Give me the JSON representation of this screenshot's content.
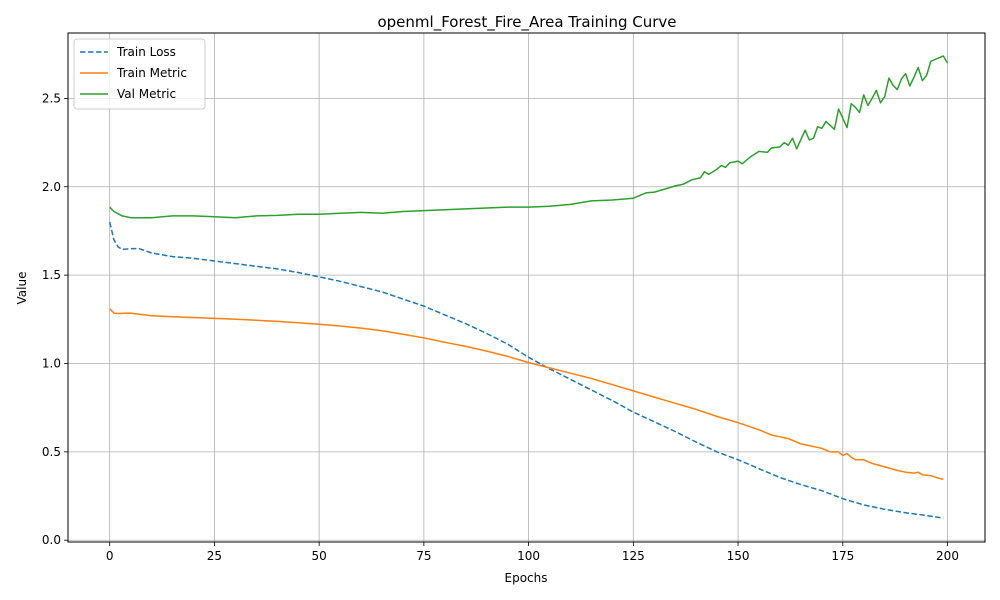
{
  "chart_data": {
    "type": "line",
    "title": "openml_Forest_Fire_Area Training Curve",
    "xlabel": "Epochs",
    "ylabel": "Value",
    "xlim": [
      -9.95,
      208.95
    ],
    "ylim": [
      -0.01,
      2.87
    ],
    "xticks": [
      0,
      25,
      50,
      75,
      100,
      125,
      150,
      175,
      200
    ],
    "yticks": [
      0.0,
      0.5,
      1.0,
      1.5,
      2.0,
      2.5
    ],
    "xtick_labels": [
      "0",
      "25",
      "50",
      "75",
      "100",
      "125",
      "150",
      "175",
      "200"
    ],
    "ytick_labels": [
      "0.0",
      "0.5",
      "1.0",
      "1.5",
      "2.0",
      "2.5"
    ],
    "grid": true,
    "legend_position": "upper-left",
    "series": [
      {
        "name": "Train Loss",
        "color": "#1f77b4",
        "style": "dashed",
        "points": [
          [
            0,
            1.8
          ],
          [
            1,
            1.7
          ],
          [
            2,
            1.66
          ],
          [
            3,
            1.645
          ],
          [
            5,
            1.65
          ],
          [
            7,
            1.65
          ],
          [
            10,
            1.625
          ],
          [
            15,
            1.605
          ],
          [
            20,
            1.595
          ],
          [
            25,
            1.58
          ],
          [
            30,
            1.565
          ],
          [
            35,
            1.55
          ],
          [
            40,
            1.535
          ],
          [
            45,
            1.515
          ],
          [
            50,
            1.49
          ],
          [
            55,
            1.465
          ],
          [
            60,
            1.435
          ],
          [
            65,
            1.405
          ],
          [
            70,
            1.365
          ],
          [
            75,
            1.325
          ],
          [
            80,
            1.275
          ],
          [
            85,
            1.225
          ],
          [
            90,
            1.17
          ],
          [
            95,
            1.11
          ],
          [
            100,
            1.035
          ],
          [
            105,
            0.97
          ],
          [
            110,
            0.91
          ],
          [
            115,
            0.85
          ],
          [
            120,
            0.79
          ],
          [
            125,
            0.725
          ],
          [
            130,
            0.67
          ],
          [
            135,
            0.615
          ],
          [
            140,
            0.555
          ],
          [
            145,
            0.5
          ],
          [
            150,
            0.455
          ],
          [
            155,
            0.405
          ],
          [
            160,
            0.355
          ],
          [
            165,
            0.315
          ],
          [
            170,
            0.28
          ],
          [
            175,
            0.235
          ],
          [
            180,
            0.2
          ],
          [
            185,
            0.175
          ],
          [
            190,
            0.155
          ],
          [
            195,
            0.14
          ],
          [
            199,
            0.125
          ]
        ]
      },
      {
        "name": "Train Metric",
        "color": "#ff7f0e",
        "style": "solid",
        "points": [
          [
            0,
            1.31
          ],
          [
            1,
            1.285
          ],
          [
            2,
            1.283
          ],
          [
            5,
            1.285
          ],
          [
            10,
            1.27
          ],
          [
            15,
            1.265
          ],
          [
            20,
            1.26
          ],
          [
            25,
            1.255
          ],
          [
            30,
            1.25
          ],
          [
            35,
            1.245
          ],
          [
            40,
            1.238
          ],
          [
            45,
            1.23
          ],
          [
            50,
            1.222
          ],
          [
            55,
            1.212
          ],
          [
            60,
            1.2
          ],
          [
            65,
            1.185
          ],
          [
            70,
            1.166
          ],
          [
            75,
            1.145
          ],
          [
            80,
            1.12
          ],
          [
            85,
            1.097
          ],
          [
            90,
            1.07
          ],
          [
            95,
            1.04
          ],
          [
            100,
            1.005
          ],
          [
            105,
            0.975
          ],
          [
            110,
            0.945
          ],
          [
            115,
            0.915
          ],
          [
            120,
            0.88
          ],
          [
            125,
            0.845
          ],
          [
            130,
            0.81
          ],
          [
            135,
            0.775
          ],
          [
            140,
            0.74
          ],
          [
            145,
            0.7
          ],
          [
            150,
            0.665
          ],
          [
            155,
            0.625
          ],
          [
            158,
            0.595
          ],
          [
            160,
            0.585
          ],
          [
            162,
            0.575
          ],
          [
            165,
            0.545
          ],
          [
            170,
            0.52
          ],
          [
            172,
            0.5
          ],
          [
            174,
            0.5
          ],
          [
            175,
            0.48
          ],
          [
            176,
            0.49
          ],
          [
            177,
            0.47
          ],
          [
            178,
            0.455
          ],
          [
            180,
            0.455
          ],
          [
            182,
            0.435
          ],
          [
            185,
            0.415
          ],
          [
            188,
            0.395
          ],
          [
            190,
            0.385
          ],
          [
            192,
            0.38
          ],
          [
            193,
            0.385
          ],
          [
            194,
            0.37
          ],
          [
            196,
            0.365
          ],
          [
            198,
            0.35
          ],
          [
            199,
            0.345
          ]
        ]
      },
      {
        "name": "Val Metric",
        "color": "#2ca02c",
        "style": "solid",
        "points": [
          [
            0,
            1.885
          ],
          [
            1,
            1.86
          ],
          [
            3,
            1.835
          ],
          [
            5,
            1.825
          ],
          [
            10,
            1.825
          ],
          [
            15,
            1.835
          ],
          [
            20,
            1.835
          ],
          [
            25,
            1.83
          ],
          [
            30,
            1.825
          ],
          [
            35,
            1.835
          ],
          [
            40,
            1.838
          ],
          [
            45,
            1.845
          ],
          [
            50,
            1.845
          ],
          [
            55,
            1.85
          ],
          [
            60,
            1.855
          ],
          [
            65,
            1.85
          ],
          [
            70,
            1.86
          ],
          [
            75,
            1.865
          ],
          [
            80,
            1.87
          ],
          [
            85,
            1.875
          ],
          [
            90,
            1.88
          ],
          [
            95,
            1.885
          ],
          [
            100,
            1.885
          ],
          [
            105,
            1.89
          ],
          [
            110,
            1.9
          ],
          [
            115,
            1.92
          ],
          [
            120,
            1.925
          ],
          [
            125,
            1.935
          ],
          [
            128,
            1.965
          ],
          [
            130,
            1.97
          ],
          [
            133,
            1.99
          ],
          [
            135,
            2.005
          ],
          [
            137,
            2.015
          ],
          [
            139,
            2.04
          ],
          [
            141,
            2.05
          ],
          [
            142,
            2.085
          ],
          [
            143,
            2.07
          ],
          [
            145,
            2.1
          ],
          [
            146,
            2.12
          ],
          [
            147,
            2.11
          ],
          [
            148,
            2.135
          ],
          [
            150,
            2.145
          ],
          [
            151,
            2.13
          ],
          [
            153,
            2.17
          ],
          [
            155,
            2.2
          ],
          [
            157,
            2.195
          ],
          [
            158,
            2.22
          ],
          [
            160,
            2.225
          ],
          [
            161,
            2.25
          ],
          [
            162,
            2.235
          ],
          [
            163,
            2.275
          ],
          [
            164,
            2.215
          ],
          [
            166,
            2.32
          ],
          [
            167,
            2.265
          ],
          [
            168,
            2.275
          ],
          [
            169,
            2.34
          ],
          [
            170,
            2.33
          ],
          [
            171,
            2.37
          ],
          [
            173,
            2.325
          ],
          [
            174,
            2.44
          ],
          [
            176,
            2.335
          ],
          [
            177,
            2.47
          ],
          [
            178,
            2.45
          ],
          [
            179,
            2.42
          ],
          [
            180,
            2.52
          ],
          [
            181,
            2.46
          ],
          [
            182,
            2.5
          ],
          [
            183,
            2.545
          ],
          [
            184,
            2.475
          ],
          [
            185,
            2.51
          ],
          [
            186,
            2.615
          ],
          [
            187,
            2.575
          ],
          [
            188,
            2.55
          ],
          [
            189,
            2.61
          ],
          [
            190,
            2.64
          ],
          [
            191,
            2.57
          ],
          [
            192,
            2.62
          ],
          [
            193,
            2.675
          ],
          [
            194,
            2.6
          ],
          [
            195,
            2.63
          ],
          [
            196,
            2.71
          ],
          [
            197,
            2.72
          ],
          [
            199,
            2.74
          ],
          [
            200,
            2.7
          ]
        ]
      }
    ]
  }
}
